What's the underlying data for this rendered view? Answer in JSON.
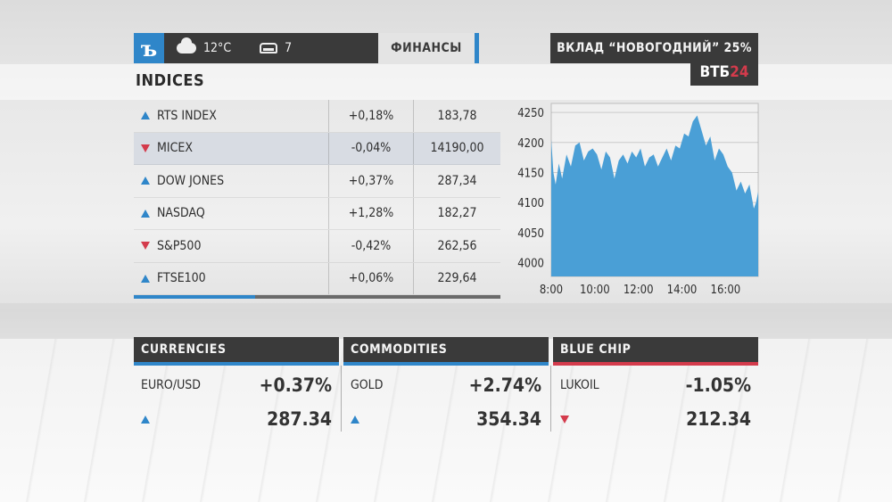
{
  "header": {
    "logo_text": "ъ",
    "temperature": "12°C",
    "traffic_level": "7",
    "section_tab": "ФИНАНСЫ"
  },
  "ad": {
    "text": "ВКЛАД “НОВОГОДНИЙ” 25%",
    "brand_main": "ВТБ",
    "brand_accent": "24"
  },
  "indices": {
    "title": "INDICES",
    "rows": [
      {
        "name": "RTS INDEX",
        "change": "+0,18%",
        "value": "183,78",
        "direction": "up"
      },
      {
        "name": "MICEX",
        "change": "-0,04%",
        "value": "14190,00",
        "direction": "down"
      },
      {
        "name": "DOW JONES",
        "change": "+0,37%",
        "value": "287,34",
        "direction": "up"
      },
      {
        "name": "NASDAQ",
        "change": "+1,28%",
        "value": "182,27",
        "direction": "up"
      },
      {
        "name": "S&P500",
        "change": "-0,42%",
        "value": "262,56",
        "direction": "down"
      },
      {
        "name": "FTSE100",
        "change": "+0,06%",
        "value": "229,64",
        "direction": "up"
      }
    ],
    "rotation_progress": 0.33
  },
  "chart_data": {
    "type": "area",
    "title": "",
    "xlabel": "",
    "ylabel": "",
    "x_ticks": [
      "8:00",
      "10:00",
      "12:00",
      "14:00",
      "16:00"
    ],
    "y_ticks": [
      4000,
      4050,
      4100,
      4150,
      4200,
      4250
    ],
    "ylim": [
      3977,
      4265
    ],
    "xlim": [
      8.0,
      17.5
    ],
    "grid": true,
    "color": "#4a9fd6",
    "x": [
      8.0,
      8.1,
      8.2,
      8.35,
      8.5,
      8.7,
      8.9,
      9.1,
      9.3,
      9.5,
      9.7,
      9.9,
      10.1,
      10.3,
      10.5,
      10.7,
      10.9,
      11.1,
      11.3,
      11.5,
      11.7,
      11.9,
      12.1,
      12.3,
      12.5,
      12.7,
      12.9,
      13.1,
      13.3,
      13.5,
      13.7,
      13.9,
      14.1,
      14.3,
      14.5,
      14.7,
      14.9,
      15.1,
      15.3,
      15.5,
      15.7,
      15.9,
      16.1,
      16.3,
      16.5,
      16.7,
      16.9,
      17.1,
      17.3,
      17.4,
      17.5
    ],
    "y": [
      4205,
      4150,
      4130,
      4165,
      4140,
      4180,
      4160,
      4195,
      4200,
      4170,
      4185,
      4190,
      4180,
      4155,
      4185,
      4175,
      4140,
      4170,
      4180,
      4165,
      4185,
      4175,
      4190,
      4160,
      4175,
      4180,
      4160,
      4175,
      4190,
      4170,
      4195,
      4190,
      4215,
      4210,
      4235,
      4245,
      4220,
      4195,
      4210,
      4170,
      4190,
      4180,
      4160,
      4150,
      4120,
      4135,
      4115,
      4130,
      4090,
      4100,
      4118
    ]
  },
  "panels": [
    {
      "title": "CURRENCIES",
      "label": "EURO/USD",
      "change": "+0.37%",
      "value": "287.34",
      "direction": "up",
      "accent": "#2f86c9"
    },
    {
      "title": "COMMODITIES",
      "label": "GOLD",
      "change": "+2.74%",
      "value": "354.34",
      "direction": "up",
      "accent": "#2f86c9"
    },
    {
      "title": "BLUE CHIP",
      "label": "LUKOIL",
      "change": "-1.05%",
      "value": "212.34",
      "direction": "down",
      "accent": "#d43b4c"
    }
  ]
}
